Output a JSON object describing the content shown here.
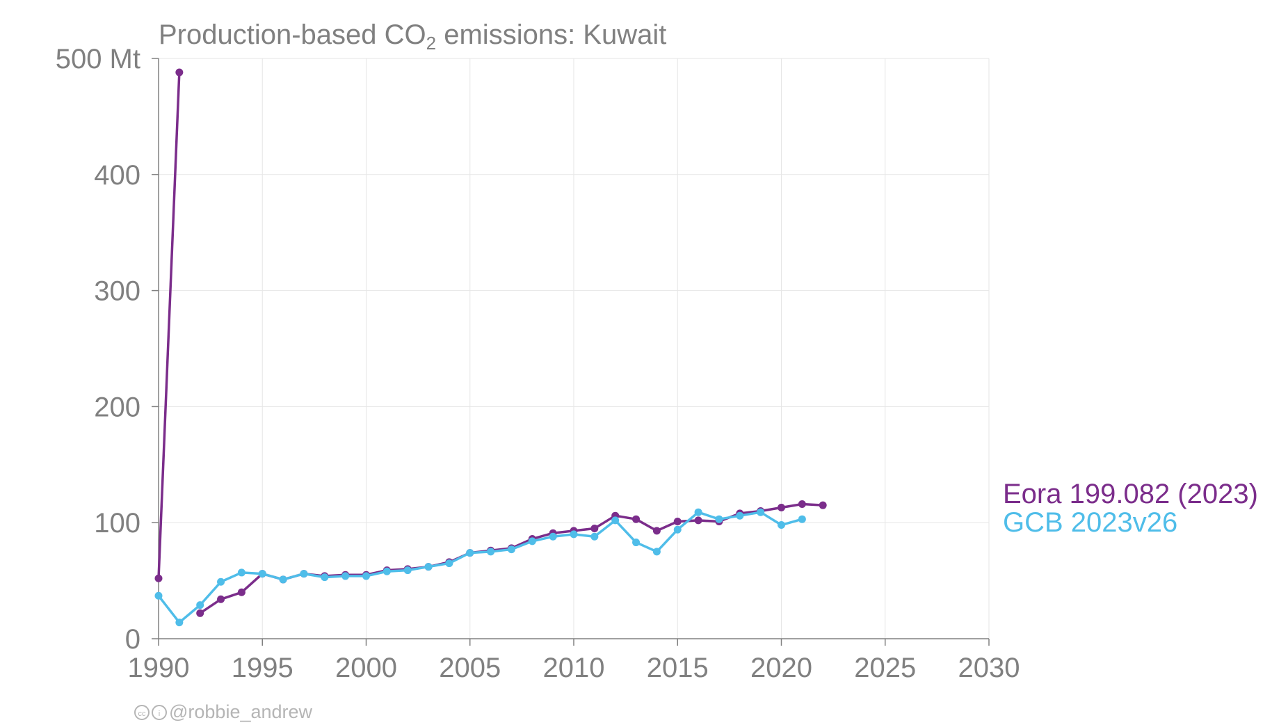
{
  "title": {
    "prefix": "Production-based CO",
    "subscript": "2",
    "suffix": " emissions: Kuwait"
  },
  "credit": {
    "text": "@robbie_andrew",
    "icons": [
      "cc-icon",
      "by-attribution-icon"
    ]
  },
  "colors": {
    "eora": "#7b2d8b",
    "gcb": "#4fbde9",
    "axis": "#808080",
    "grid": "#e6e6e6"
  },
  "chart_data": {
    "type": "line",
    "title": "Production-based CO2 emissions: Kuwait",
    "xlabel": "",
    "ylabel": "",
    "xlim": [
      1990,
      2030
    ],
    "ylim": [
      0,
      500
    ],
    "x_ticks": [
      "1990",
      "1995",
      "2000",
      "2005",
      "2010",
      "2015",
      "2020",
      "2025",
      "2030"
    ],
    "y_ticks": [
      "0",
      "100",
      "200",
      "300",
      "400",
      "500 Mt"
    ],
    "x_tick_values": [
      1990,
      1995,
      2000,
      2005,
      2010,
      2015,
      2020,
      2025,
      2030
    ],
    "y_tick_values": [
      0,
      100,
      200,
      300,
      400,
      500
    ],
    "grid": true,
    "legend_placement": "right",
    "series": [
      {
        "name": "Eora 199.082 (2023)",
        "color": "#7b2d8b",
        "x": [
          1990,
          1991,
          1992,
          1993,
          1994,
          1995,
          1996,
          1997,
          1998,
          1999,
          2000,
          2001,
          2002,
          2003,
          2004,
          2005,
          2006,
          2007,
          2008,
          2009,
          2010,
          2011,
          2012,
          2013,
          2014,
          2015,
          2016,
          2017,
          2018,
          2019,
          2020,
          2021,
          2022
        ],
        "values": [
          52,
          488,
          22,
          34,
          40,
          56,
          51,
          56,
          54,
          55,
          55,
          59,
          60,
          62,
          66,
          74,
          76,
          78,
          86,
          91,
          93,
          95,
          106,
          103,
          93,
          101,
          102,
          101,
          108,
          110,
          113,
          116,
          115
        ],
        "segments_break_after": [
          1991
        ]
      },
      {
        "name": "GCB 2023v26",
        "color": "#4fbde9",
        "x": [
          1990,
          1991,
          1992,
          1993,
          1994,
          1995,
          1996,
          1997,
          1998,
          1999,
          2000,
          2001,
          2002,
          2003,
          2004,
          2005,
          2006,
          2007,
          2008,
          2009,
          2010,
          2011,
          2012,
          2013,
          2014,
          2015,
          2016,
          2017,
          2018,
          2019,
          2020,
          2021
        ],
        "values": [
          37,
          14,
          29,
          49,
          57,
          56,
          51,
          56,
          53,
          54,
          54,
          58,
          59,
          62,
          65,
          74,
          75,
          77,
          84,
          88,
          90,
          88,
          102,
          83,
          75,
          94,
          109,
          103,
          106,
          109,
          98,
          103
        ]
      }
    ]
  }
}
